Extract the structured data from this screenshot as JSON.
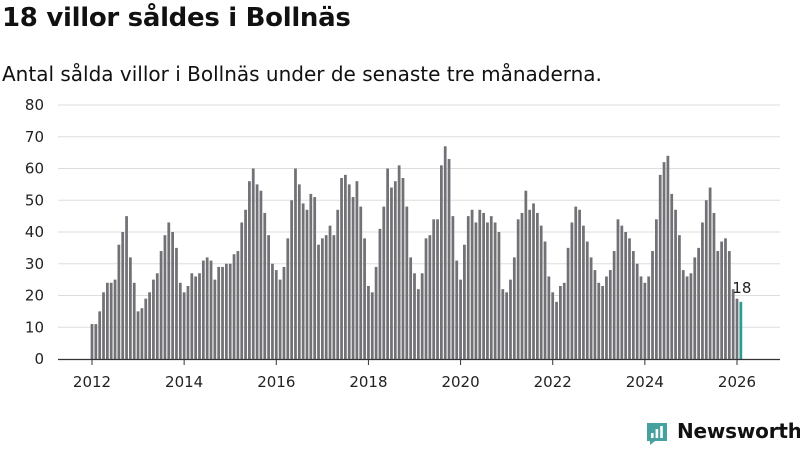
{
  "title": "18 villor såldes i Bollnäs",
  "subtitle": "Antal sålda villor i Bollnäs under de senaste tre månaderna.",
  "brand": {
    "name": "Newsworthy",
    "icon": "bar-chart-logo-icon",
    "color": "#45a29e"
  },
  "colors": {
    "bar": "#727176",
    "highlight": "#2a9d8f",
    "grid": "#dddddd",
    "axis": "#333333"
  },
  "chart_data": {
    "type": "bar",
    "title": "",
    "xlabel": "",
    "ylabel": "",
    "ylim": [
      0,
      80
    ],
    "yticks": [
      "0",
      "10",
      "20",
      "30",
      "40",
      "50",
      "60",
      "70",
      "80"
    ],
    "xticks": [
      "2012",
      "2014",
      "2016",
      "2018",
      "2020",
      "2022",
      "2024",
      "2026"
    ],
    "start": "2012-01",
    "grid": true,
    "legend": "none",
    "highlight_label": "18",
    "values": [
      11,
      11,
      15,
      21,
      24,
      24,
      25,
      36,
      40,
      45,
      32,
      24,
      15,
      16,
      19,
      21,
      25,
      27,
      34,
      39,
      43,
      40,
      35,
      24,
      21,
      23,
      27,
      26,
      27,
      31,
      32,
      31,
      25,
      29,
      29,
      30,
      30,
      33,
      34,
      43,
      47,
      56,
      60,
      55,
      53,
      46,
      39,
      30,
      28,
      25,
      29,
      38,
      50,
      60,
      55,
      49,
      47,
      52,
      51,
      36,
      38,
      39,
      42,
      39,
      47,
      57,
      58,
      55,
      51,
      56,
      48,
      38,
      23,
      21,
      29,
      41,
      48,
      60,
      54,
      56,
      61,
      57,
      48,
      32,
      27,
      22,
      27,
      38,
      39,
      44,
      44,
      61,
      67,
      63,
      45,
      31,
      25,
      36,
      45,
      47,
      43,
      47,
      46,
      43,
      45,
      43,
      40,
      22,
      21,
      25,
      32,
      44,
      46,
      53,
      47,
      49,
      46,
      42,
      37,
      26,
      21,
      18,
      23,
      24,
      35,
      43,
      48,
      47,
      42,
      37,
      32,
      28,
      24,
      23,
      26,
      28,
      34,
      44,
      42,
      40,
      38,
      34,
      30,
      26,
      24,
      26,
      34,
      44,
      58,
      62,
      64,
      52,
      47,
      39,
      28,
      26,
      27,
      32,
      35,
      43,
      50,
      54,
      46,
      34,
      37,
      38,
      34,
      22,
      19,
      18
    ]
  }
}
